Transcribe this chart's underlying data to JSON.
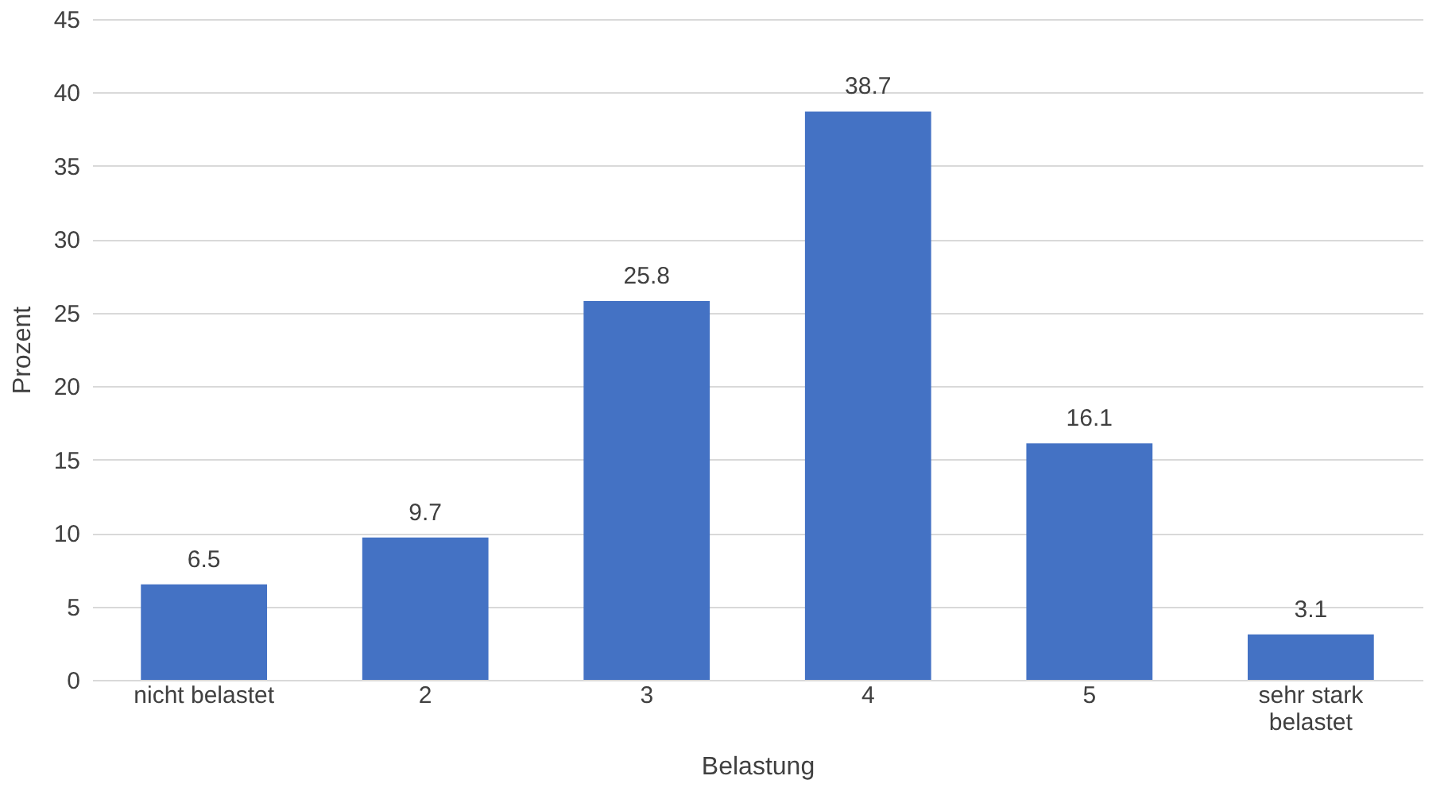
{
  "chart_data": {
    "type": "bar",
    "xlabel": "Belastung",
    "ylabel": "Prozent",
    "categories": [
      "nicht belastet",
      "2",
      "3",
      "4",
      "5",
      "sehr stark belastet"
    ],
    "values": [
      6.5,
      9.7,
      25.8,
      38.7,
      16.1,
      3.1
    ],
    "color": "#4472c4",
    "ylim": [
      0,
      45
    ],
    "yticks": [
      0,
      5,
      10,
      15,
      20,
      25,
      30,
      35,
      40,
      45
    ],
    "grid": "y",
    "data_labels": true
  }
}
